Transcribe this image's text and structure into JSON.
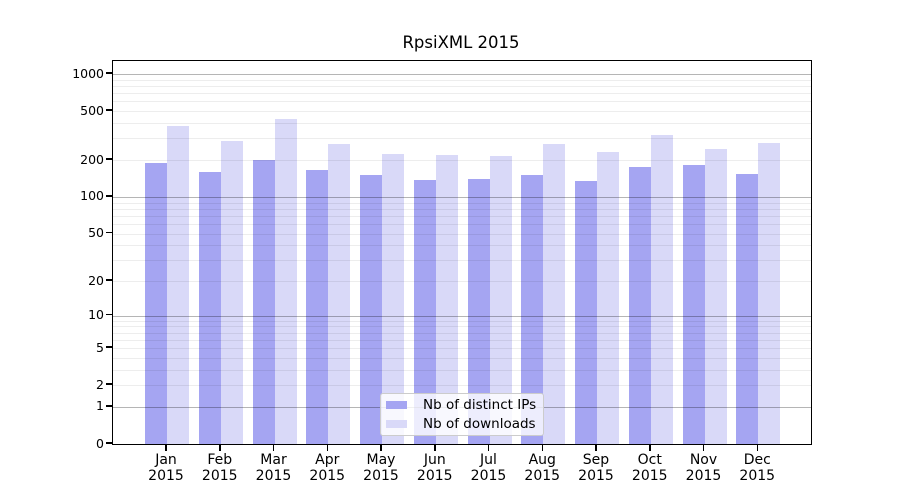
{
  "chart_data": {
    "type": "bar",
    "title": "RpsiXML 2015",
    "categories": [
      "Jan 2015",
      "Feb 2015",
      "Mar 2015",
      "Apr 2015",
      "May 2015",
      "Jun 2015",
      "Jul 2015",
      "Aug 2015",
      "Sep 2015",
      "Oct 2015",
      "Nov 2015",
      "Dec 2015"
    ],
    "series": [
      {
        "name": "Nb of distinct IPs",
        "color": "#a5a5f2",
        "values": [
          190,
          161,
          202,
          165,
          152,
          137,
          139,
          152,
          136,
          177,
          183,
          154
        ]
      },
      {
        "name": "Nb of downloads",
        "color": "#d9d9f8",
        "values": [
          382,
          288,
          433,
          272,
          224,
          221,
          216,
          271,
          233,
          321,
          247,
          274
        ]
      }
    ],
    "yscale": "log1p",
    "y_tick_values": [
      0,
      1,
      2,
      5,
      10,
      20,
      50,
      100,
      200,
      500,
      1000
    ],
    "ylim": [
      0,
      1290
    ],
    "xlabel": "",
    "ylabel": "",
    "grid": true,
    "legend_position": "lower center"
  },
  "colors": {
    "background": "#ffffff",
    "bar_distinct_ips": "#a5a5f2",
    "bar_downloads": "#d9d9f8",
    "grid_major": "#b5b5b5",
    "grid_minor": "#ededed",
    "axis": "#000000",
    "legend_border": "#cccccc"
  }
}
